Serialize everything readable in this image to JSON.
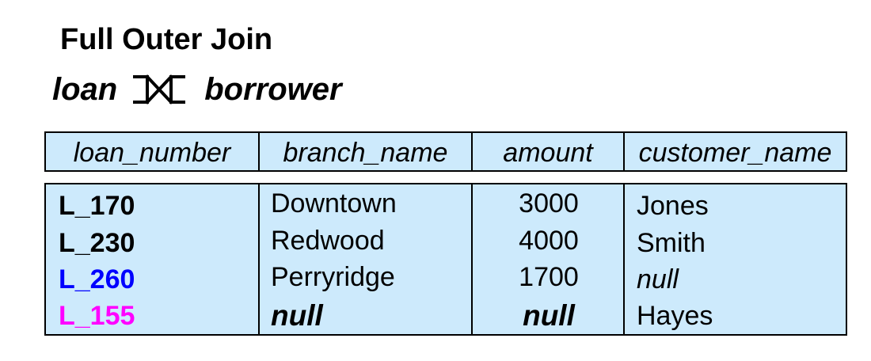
{
  "title": "Full Outer Join",
  "expression": {
    "left_relation": "loan",
    "operator_icon": "full-outer-join-symbol",
    "right_relation": "borrower"
  },
  "table": {
    "header_background": "#cdeafc",
    "columns": [
      "loan_number",
      "branch_name",
      "amount",
      "customer_name"
    ],
    "rows": [
      {
        "loan_number": "L_170",
        "branch_name": "Downtown",
        "amount": "3000",
        "customer_name": "Jones",
        "loan_color": "#000000"
      },
      {
        "loan_number": "L_230",
        "branch_name": "Redwood",
        "amount": "4000",
        "customer_name": "Smith",
        "loan_color": "#000000"
      },
      {
        "loan_number": "L_260",
        "branch_name": "Perryridge",
        "amount": "1700",
        "customer_name": "null",
        "loan_color": "#0000ff"
      },
      {
        "loan_number": "L_155",
        "branch_name": "null",
        "amount": "null",
        "customer_name": "Hayes",
        "loan_color": "#ff00ff"
      }
    ]
  }
}
